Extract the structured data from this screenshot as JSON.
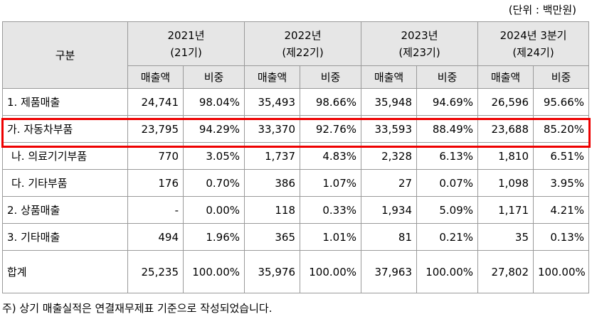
{
  "unit_label": "(단위 : 백만원)",
  "table": {
    "header_category": "구분",
    "periods": [
      {
        "year": "2021년",
        "term": "(21기)"
      },
      {
        "year": "2022년",
        "term": "(제22기)"
      },
      {
        "year": "2023년",
        "term": "(제23기)"
      },
      {
        "year": "2024년 3분기",
        "term": "(제24기)"
      }
    ],
    "sub_headers": [
      "매출액",
      "비중",
      "매출액",
      "비중",
      "매출액",
      "비중",
      "매출액",
      "비중"
    ],
    "rows": [
      {
        "label": "1. 제품매출",
        "cells": [
          "24,741",
          "98.04%",
          "35,493",
          "98.66%",
          "35,948",
          "94.69%",
          "26,596",
          "95.66%"
        ]
      },
      {
        "label": "가. 자동차부품",
        "highlighted": true,
        "cells": [
          "23,795",
          "94.29%",
          "33,370",
          "92.76%",
          "33,593",
          "88.49%",
          "23,688",
          "85.20%"
        ]
      },
      {
        "label": "나. 의료기기부품",
        "cells": [
          "770",
          "3.05%",
          "1,737",
          "4.83%",
          "2,328",
          "6.13%",
          "1,810",
          "6.51%"
        ]
      },
      {
        "label": "다. 기타부품",
        "cells": [
          "176",
          "0.70%",
          "386",
          "1.07%",
          "27",
          "0.07%",
          "1,098",
          "3.95%"
        ]
      },
      {
        "label": "2. 상품매출",
        "cells": [
          "-",
          "0.00%",
          "118",
          "0.33%",
          "1,934",
          "5.09%",
          "1,171",
          "4.21%"
        ]
      },
      {
        "label": "3. 기타매출",
        "cells": [
          "494",
          "1.96%",
          "365",
          "1.01%",
          "81",
          "0.21%",
          "35",
          "0.13%"
        ]
      },
      {
        "label": "합계",
        "cells": [
          "25,235",
          "100.00%",
          "35,976",
          "100.00%",
          "37,963",
          "100.00%",
          "27,802",
          "100.00%"
        ]
      }
    ],
    "highlight_color": "#ee0000"
  },
  "footnote": "주) 상기 매출실적은 연결재무제표 기준으로 작성되었습니다."
}
